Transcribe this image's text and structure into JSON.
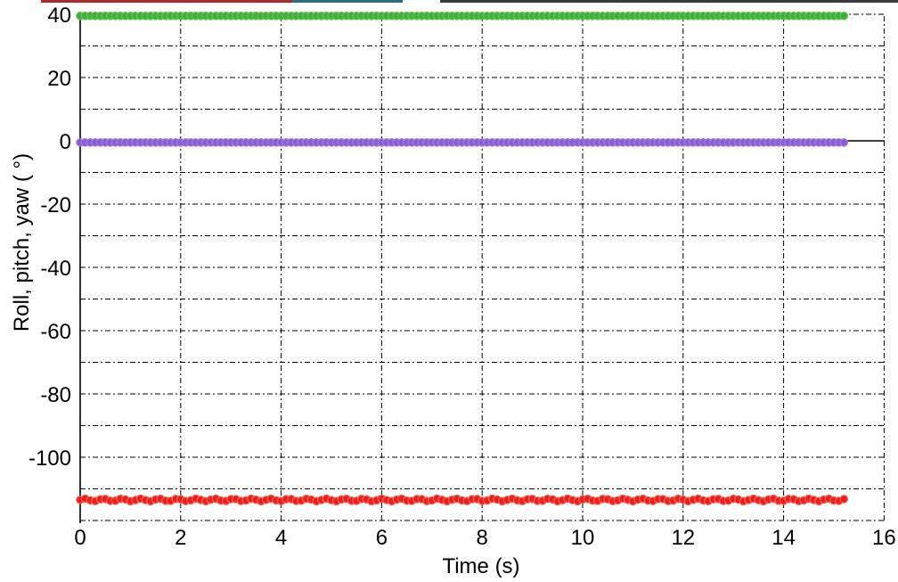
{
  "chart_data": {
    "type": "scatter",
    "title": "",
    "xlabel": "Time (s)",
    "ylabel": "Roll, pitch, yaw ( °)",
    "xlim": [
      0,
      16
    ],
    "ylim": [
      -120,
      40
    ],
    "x_ticks": [
      0,
      2,
      4,
      6,
      8,
      10,
      12,
      14,
      16
    ],
    "y_ticks": [
      40,
      20,
      0,
      -20,
      -40,
      -60,
      -80,
      -100
    ],
    "x_tick_labels": [
      "0",
      "2",
      "4",
      "6",
      "8",
      "10",
      "12",
      "14",
      "16"
    ],
    "y_tick_labels": [
      "40",
      "20",
      "0",
      "-20",
      "-40",
      "-60",
      "-80",
      "-100"
    ],
    "grid": true,
    "x_range": [
      0,
      15.2
    ],
    "sample_step": 0.1,
    "series": [
      {
        "values_constant": 39.5,
        "color": "#3cb043",
        "edge": "#6cc04a"
      },
      {
        "values_constant": -0.5,
        "color": "#8a5cd6",
        "edge": "#a07ee0"
      },
      {
        "values_constant": -113.5,
        "color": "#f21b1b",
        "edge": "#e86a5a"
      }
    ],
    "zero_line": true
  }
}
